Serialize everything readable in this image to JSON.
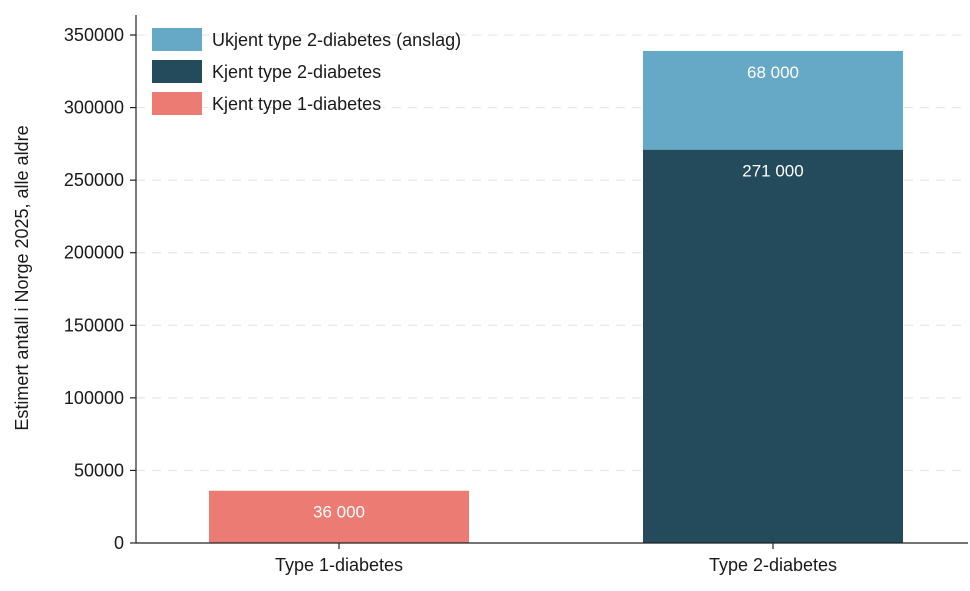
{
  "chart_data": {
    "type": "bar",
    "stacked": true,
    "categories": [
      "Type 1-diabetes",
      "Type 2-diabetes"
    ],
    "series": [
      {
        "name": "Kjent type 1-diabetes",
        "color": "#eb7b73",
        "values": [
          36000,
          0
        ],
        "labels": [
          "36 000",
          ""
        ]
      },
      {
        "name": "Kjent type 2-diabetes",
        "color": "#234b5c",
        "values": [
          0,
          271000
        ],
        "labels": [
          "",
          "271 000"
        ]
      },
      {
        "name": "Ukjent type 2-diabetes (anslag)",
        "color": "#66a9c6",
        "values": [
          0,
          68000
        ],
        "labels": [
          "",
          "68 000"
        ]
      }
    ],
    "legend": {
      "placement": "top-left",
      "order": [
        "Ukjent type 2-diabetes (anslag)",
        "Kjent type 2-diabetes",
        "Kjent type 1-diabetes"
      ]
    },
    "title": "",
    "xlabel": "",
    "ylabel": "Estimert antall i Norge 2025, alle aldre",
    "ylim": [
      0,
      350000
    ],
    "yticks": [
      0,
      50000,
      100000,
      150000,
      200000,
      250000,
      300000,
      350000
    ],
    "ytick_labels": [
      "0",
      "50000",
      "100000",
      "150000",
      "200000",
      "250000",
      "300000",
      "350000"
    ],
    "grid": "horizontal-dashed"
  }
}
